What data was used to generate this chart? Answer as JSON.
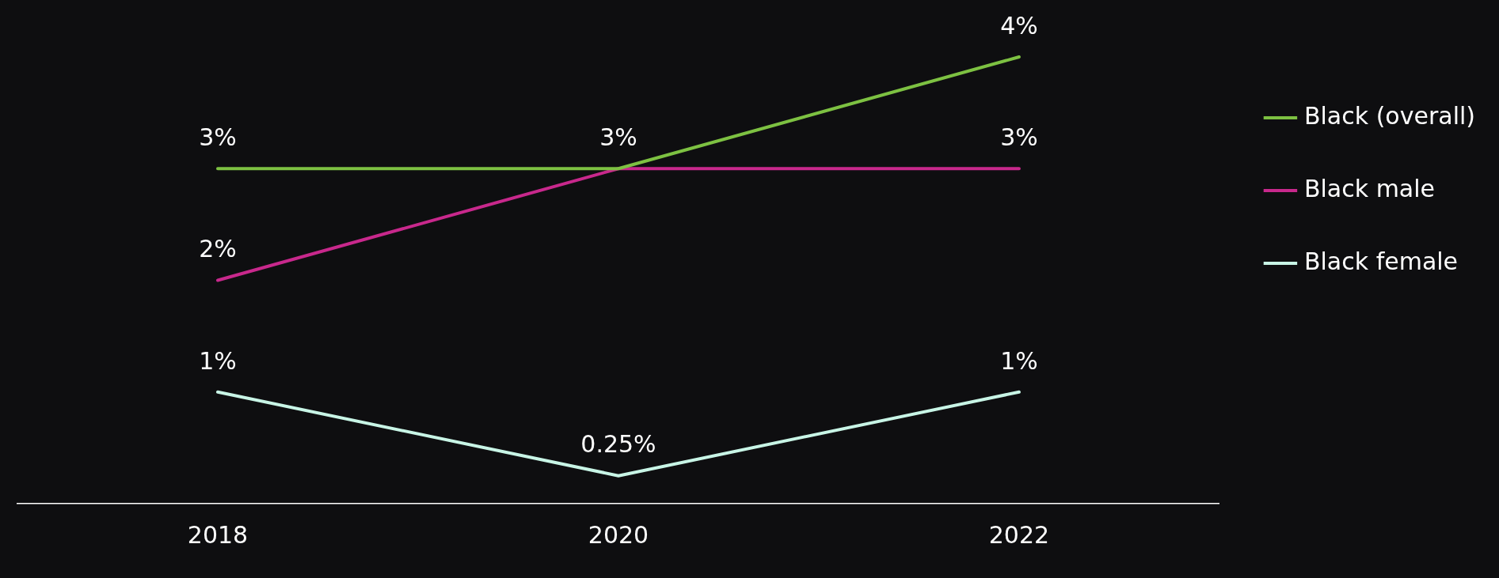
{
  "chart_data": {
    "type": "line",
    "categories": [
      "2018",
      "2020",
      "2022"
    ],
    "series": [
      {
        "name": "Black (overall)",
        "color": "#7dc142",
        "values": [
          3,
          3,
          4
        ],
        "value_labels": [
          "3%",
          "3%",
          "4%"
        ]
      },
      {
        "name": "Black male",
        "color": "#c8288c",
        "values": [
          2,
          3,
          3
        ],
        "value_labels": [
          "2%",
          null,
          "3%"
        ]
      },
      {
        "name": "Black female",
        "color": "#c8f5e6",
        "values": [
          1,
          0.25,
          1
        ],
        "value_labels": [
          "1%",
          "0.25%",
          "1%"
        ]
      }
    ],
    "tick_labels": "x",
    "legend": "right",
    "marker": "none",
    "line_style": "solid"
  }
}
